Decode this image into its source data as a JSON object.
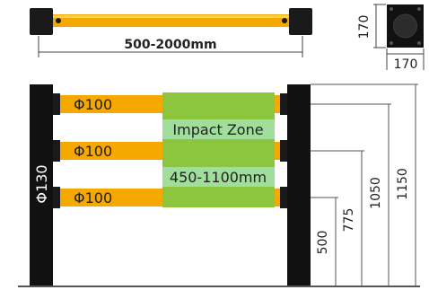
{
  "top_rail": {
    "length_label": "500-2000mm"
  },
  "base_plate": {
    "height_label": "170",
    "width_label": "170"
  },
  "rails": [
    {
      "diameter_label": "Φ100"
    },
    {
      "diameter_label": "Φ100"
    },
    {
      "diameter_label": "Φ100"
    }
  ],
  "post": {
    "diameter_label": "Φ130"
  },
  "impact_zone": {
    "title": "Impact Zone",
    "range": "450-1100mm"
  },
  "heights": [
    {
      "label": "500"
    },
    {
      "label": "775"
    },
    {
      "label": "1050"
    },
    {
      "label": "1150"
    }
  ],
  "colors": {
    "rail": "#f5a800",
    "post": "#111111",
    "zone": "#8cc63f",
    "line": "#444444"
  }
}
